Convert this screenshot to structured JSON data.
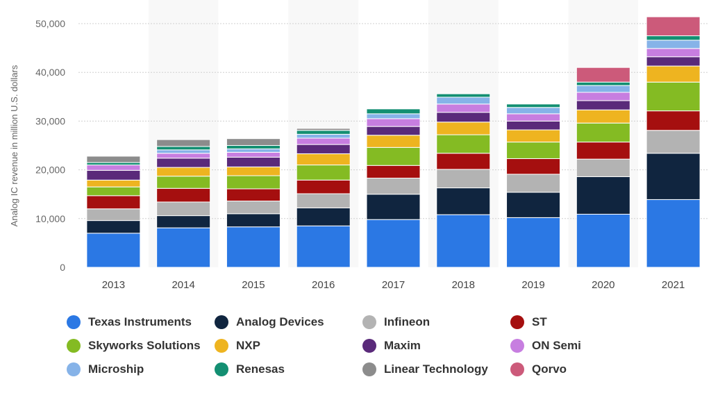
{
  "chart_data": {
    "type": "bar",
    "stacked": true,
    "title": "",
    "xlabel": "",
    "ylabel": "Analog IC revenue in million U.S. dollars",
    "ylim": [
      0,
      50000
    ],
    "yticks": [
      0,
      10000,
      20000,
      30000,
      40000,
      50000
    ],
    "ytick_labels": [
      "0",
      "10,000",
      "20,000",
      "30,000",
      "40,000",
      "50,000"
    ],
    "grid": true,
    "legend_position": "bottom",
    "categories": [
      "2013",
      "2014",
      "2015",
      "2016",
      "2017",
      "2018",
      "2019",
      "2020",
      "2021"
    ],
    "series": [
      {
        "name": "Texas Instruments",
        "color": "#2b78e4",
        "values": [
          7000,
          8100,
          8300,
          8500,
          9800,
          10800,
          10200,
          10900,
          13900
        ]
      },
      {
        "name": "Analog Devices",
        "color": "#10253f",
        "values": [
          2600,
          2500,
          2700,
          3700,
          5200,
          5500,
          5200,
          7700,
          9500
        ]
      },
      {
        "name": "Infineon",
        "color": "#b3b3b3",
        "values": [
          2400,
          2800,
          2600,
          2900,
          3300,
          3800,
          3700,
          3600,
          4700
        ]
      },
      {
        "name": "ST",
        "color": "#a50f0f",
        "values": [
          2700,
          2800,
          2500,
          2800,
          2600,
          3300,
          3200,
          3500,
          4000
        ]
      },
      {
        "name": "Skyworks Solutions",
        "color": "#84bb23",
        "values": [
          1800,
          2500,
          2700,
          3100,
          3700,
          3800,
          3400,
          3900,
          5900
        ]
      },
      {
        "name": "NXP",
        "color": "#eeb420",
        "values": [
          1400,
          1800,
          1800,
          2300,
          2500,
          2600,
          2500,
          2700,
          3300
        ]
      },
      {
        "name": "Maxim",
        "color": "#5a2a7a",
        "values": [
          2000,
          1900,
          2000,
          1900,
          1800,
          2000,
          1800,
          1900,
          1900
        ]
      },
      {
        "name": "ON Semi",
        "color": "#c77ee0",
        "values": [
          1100,
          1000,
          1000,
          1300,
          1600,
          1700,
          1500,
          1700,
          1700
        ]
      },
      {
        "name": "Microship",
        "color": "#86b3e8",
        "values": [
          0,
          700,
          700,
          800,
          1000,
          1400,
          1300,
          1400,
          1700
        ]
      },
      {
        "name": "Renesas",
        "color": "#138f72",
        "values": [
          500,
          700,
          700,
          800,
          1000,
          700,
          700,
          700,
          900
        ]
      },
      {
        "name": "Linear Technology",
        "color": "#8c8c8c",
        "values": [
          1300,
          1400,
          1400,
          400,
          0,
          0,
          0,
          0,
          0
        ]
      },
      {
        "name": "Qorvo",
        "color": "#cc5a7a",
        "values": [
          0,
          0,
          0,
          0,
          0,
          0,
          0,
          3000,
          3900
        ]
      }
    ]
  }
}
